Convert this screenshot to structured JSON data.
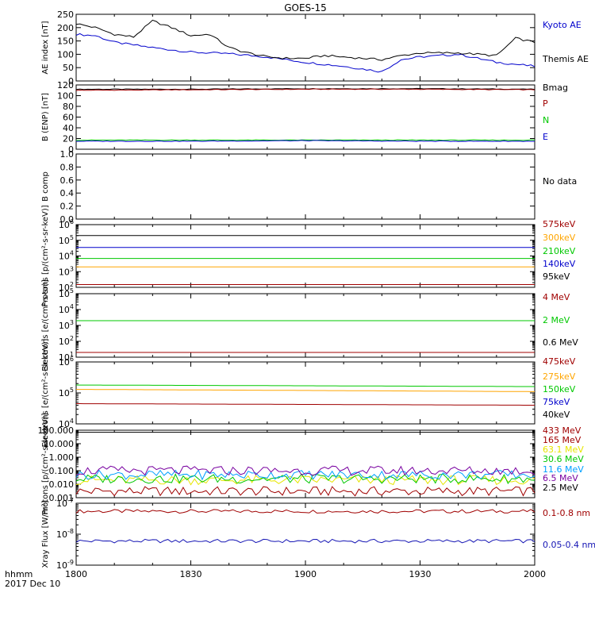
{
  "title": "GOES-15",
  "time_axis": {
    "ticks": [
      "1800",
      "1830",
      "1900",
      "1930",
      "2000"
    ],
    "corner_label_1": "hhmm",
    "corner_label_2": "2017 Dec 10"
  },
  "colors": {
    "black": "#000000",
    "blue": "#0000cc",
    "red": "#a00000",
    "green": "#00c800",
    "orange": "#ffa500",
    "yellow": "#e6e600",
    "cyan": "#00a0ff",
    "purple": "#7800a0",
    "dkblue": "#1414b4"
  },
  "chart_data": [
    {
      "type": "line",
      "ylabel": "AE index [nT]",
      "yscale": "linear",
      "ylim": [
        0,
        250
      ],
      "yticks": [
        "0",
        "50",
        "100",
        "150",
        "200",
        "250"
      ],
      "x_range_hhmm": [
        "1800",
        "2000"
      ],
      "series": [
        {
          "name": "Kyoto AE",
          "color": "blue",
          "x_minutes": [
            0,
            5,
            10,
            20,
            30,
            40,
            50,
            60,
            70,
            75,
            80,
            85,
            90,
            95,
            100,
            105,
            110,
            120
          ],
          "values": [
            175,
            170,
            145,
            125,
            108,
            102,
            90,
            70,
            55,
            45,
            35,
            80,
            90,
            95,
            100,
            85,
            70,
            55
          ]
        },
        {
          "name": "Themis AE",
          "color": "black",
          "x_minutes": [
            0,
            5,
            10,
            15,
            20,
            25,
            30,
            35,
            40,
            45,
            50,
            55,
            60,
            65,
            70,
            75,
            80,
            85,
            90,
            95,
            100,
            105,
            110,
            115,
            120
          ],
          "values": [
            215,
            200,
            175,
            165,
            225,
            200,
            170,
            175,
            125,
            105,
            90,
            85,
            85,
            95,
            90,
            85,
            80,
            95,
            105,
            105,
            105,
            100,
            95,
            160,
            145
          ]
        }
      ]
    },
    {
      "type": "line",
      "ylabel": "B (ENP) [nT]",
      "yscale": "linear",
      "ylim": [
        0,
        120
      ],
      "yticks": [
        "0",
        "20",
        "40",
        "60",
        "80",
        "100",
        "120"
      ],
      "x_range_hhmm": [
        "1800",
        "2000"
      ],
      "series": [
        {
          "name": "Bmag",
          "color": "black",
          "x_minutes": [
            0,
            30,
            60,
            90,
            120
          ],
          "values": [
            112,
            112,
            113,
            113,
            112
          ]
        },
        {
          "name": "P",
          "color": "red",
          "x_minutes": [
            0,
            30,
            60,
            90,
            120
          ],
          "values": [
            110,
            111,
            112,
            112,
            111
          ]
        },
        {
          "name": "N",
          "color": "green",
          "x_minutes": [
            0,
            30,
            60,
            90,
            120
          ],
          "values": [
            17,
            17,
            17,
            17,
            17
          ]
        },
        {
          "name": "E",
          "color": "blue",
          "x_minutes": [
            0,
            30,
            60,
            90,
            120
          ],
          "values": [
            15,
            15,
            16,
            15,
            15
          ]
        }
      ]
    },
    {
      "type": "line",
      "ylabel": "B comp",
      "yscale": "linear",
      "ylim": [
        0,
        1
      ],
      "yticks": [
        "0.0",
        "0.2",
        "0.4",
        "0.6",
        "0.8",
        "1.0"
      ],
      "x_range_hhmm": [
        "1800",
        "2000"
      ],
      "no_data_label": "No data",
      "series": []
    },
    {
      "type": "line",
      "ylabel": "Protons [p/(cm²-s-sr-keV)]",
      "yscale": "log",
      "ylim_exponents": [
        2,
        6
      ],
      "x_range_hhmm": [
        "1800",
        "2000"
      ],
      "series": [
        {
          "name": "575keV",
          "color": "red",
          "x_minutes": [
            0,
            120
          ],
          "values": [
            150.0,
            150.0
          ]
        },
        {
          "name": "300keV",
          "color": "orange",
          "x_minutes": [
            0,
            120
          ],
          "values": [
            2000.0,
            2000.0
          ]
        },
        {
          "name": "210keV",
          "color": "green",
          "x_minutes": [
            0,
            120
          ],
          "values": [
            7000.0,
            7000.0
          ]
        },
        {
          "name": "140keV",
          "color": "blue",
          "x_minutes": [
            0,
            120
          ],
          "values": [
            35000.0,
            35000.0
          ]
        },
        {
          "name": "95keV",
          "color": "black",
          "x_minutes": [
            0,
            120
          ],
          "values": [
            200000.0,
            200000.0
          ]
        }
      ]
    },
    {
      "type": "line",
      "ylabel": "Electrons [e/(cm²-s-sr)]",
      "yscale": "log",
      "ylim_exponents": [
        1,
        5
      ],
      "x_range_hhmm": [
        "1800",
        "2000"
      ],
      "series": [
        {
          "name": "4 MeV",
          "color": "red",
          "x_minutes": [
            0,
            120
          ],
          "values": [
            20,
            20
          ]
        },
        {
          "name": "2 MeV",
          "color": "green",
          "x_minutes": [
            0,
            120
          ],
          "values": [
            2000,
            2000
          ]
        },
        {
          "name": "0.6 MeV",
          "color": "black",
          "x_minutes": [],
          "values": []
        }
      ]
    },
    {
      "type": "line",
      "ylabel": "Electrons [e/(cm²-s-sr-keV)]",
      "yscale": "log",
      "ylim_exponents": [
        4,
        6
      ],
      "x_range_hhmm": [
        "1800",
        "2000"
      ],
      "series": [
        {
          "name": "475keV",
          "color": "red",
          "x_minutes": [
            0,
            120
          ],
          "values": [
            45000.0,
            40000.0
          ]
        },
        {
          "name": "275keV",
          "color": "orange",
          "x_minutes": [
            0,
            120
          ],
          "values": [
            130000.0,
            110000.0
          ]
        },
        {
          "name": "150keV",
          "color": "green",
          "x_minutes": [
            0,
            120
          ],
          "values": [
            180000.0,
            160000.0
          ]
        },
        {
          "name": "75keV",
          "color": "blue",
          "x_minutes": [],
          "values": []
        },
        {
          "name": "40keV",
          "color": "black",
          "x_minutes": [],
          "values": []
        }
      ]
    },
    {
      "type": "line",
      "ylabel": "Protons [p/(cm²-s-sr-keV)]",
      "yscale": "log",
      "ylim_exponents": [
        -3,
        2
      ],
      "yticks": [
        "0.001",
        "0.010",
        "0.100",
        "1.000",
        "10.000",
        "100.000"
      ],
      "x_range_hhmm": [
        "1800",
        "2000"
      ],
      "series": [
        {
          "name": "433 MeV",
          "color": "red",
          "x_minutes": [],
          "values": []
        },
        {
          "name": "165 MeV",
          "color": "red",
          "x_minutes": [
            0,
            120
          ],
          "values": [
            0.003,
            0.003
          ]
        },
        {
          "name": "63.1 MeV",
          "color": "yellow",
          "x_minutes": [
            0,
            120
          ],
          "values": [
            0.02,
            0.02
          ]
        },
        {
          "name": "30.6 MeV",
          "color": "green",
          "x_minutes": [
            0,
            120
          ],
          "values": [
            0.025,
            0.025
          ]
        },
        {
          "name": "11.6 MeV",
          "color": "cyan",
          "x_minutes": [
            0,
            120
          ],
          "values": [
            0.05,
            0.05
          ]
        },
        {
          "name": "6.5 MeV",
          "color": "purple",
          "x_minutes": [
            0,
            120
          ],
          "values": [
            0.1,
            0.1
          ]
        },
        {
          "name": "2.5 MeV",
          "color": "black",
          "x_minutes": [
            0,
            120
          ],
          "values": [
            70,
            70
          ]
        }
      ]
    },
    {
      "type": "line",
      "ylabel": "Xray Flux [W/m²]",
      "yscale": "log",
      "ylim_exponents": [
        -9,
        -7
      ],
      "x_range_hhmm": [
        "1800",
        "2000"
      ],
      "series": [
        {
          "name": "0.1-0.8 nm",
          "color": "red",
          "x_minutes": [
            0,
            120
          ],
          "values": [
            5.5e-08,
            5.5e-08
          ]
        },
        {
          "name": "0.05-0.4 nm",
          "color": "dkblue",
          "x_minutes": [
            0,
            120
          ],
          "values": [
            6e-09,
            6e-09
          ]
        }
      ]
    }
  ]
}
